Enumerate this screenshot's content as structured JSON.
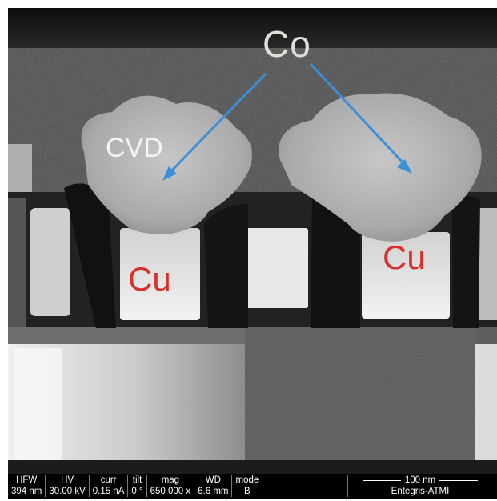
{
  "labels": {
    "co": "Co",
    "cvd": "CVD",
    "cu_left": "Cu",
    "cu_right": "Cu"
  },
  "databar": {
    "columns": [
      {
        "header": "HFW",
        "value": "394 nm"
      },
      {
        "header": "HV",
        "value": "30.00 kV"
      },
      {
        "header": "curr",
        "value": "0.15 nA"
      },
      {
        "header": "tilt",
        "value": "0 °"
      },
      {
        "header": "mag",
        "value": "650 000 x"
      },
      {
        "header": "WD",
        "value": "6.6 mm"
      },
      {
        "header": "mode",
        "value": "B"
      }
    ],
    "scale_label": "100 nm",
    "credit": "Entegris-ATMI"
  },
  "colors": {
    "arrow": "#3a8fd8",
    "cu_text": "#d9302c"
  }
}
